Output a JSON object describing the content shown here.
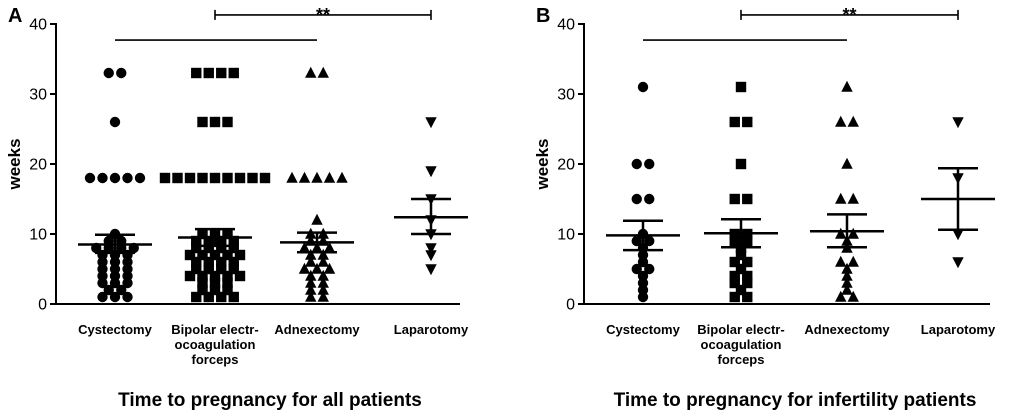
{
  "chart_data": [
    {
      "type": "scatter",
      "panel": "A",
      "title": "Time to pregnancy for all patients",
      "ylabel": "weeks",
      "ylim": [
        0,
        40
      ],
      "yticks": [
        0,
        10,
        20,
        30,
        40
      ],
      "categories": [
        "Cystectomy",
        "Bipolar electr-ocoagulation forceps",
        "Adnexectomy",
        "Laparotomy"
      ],
      "category_lines": [
        [
          "Cystectomy"
        ],
        [
          "Bipolar electr-",
          "ocoagulation",
          "forceps"
        ],
        [
          "Adnexectomy"
        ],
        [
          "Laparotomy"
        ]
      ],
      "markers": [
        "circle",
        "square",
        "triangle-up",
        "triangle-down"
      ],
      "series": [
        {
          "name": "Cystectomy",
          "values": [
            33,
            33,
            26,
            18,
            18,
            18,
            18,
            18,
            10,
            9,
            9,
            8,
            8,
            8,
            8,
            7,
            7,
            7,
            6,
            6,
            6,
            5,
            5,
            5,
            4,
            4,
            4,
            3,
            3,
            3,
            2,
            2,
            1,
            1,
            1
          ]
        },
        {
          "name": "Bipolar electr-ocoagulation forceps",
          "values": [
            33,
            33,
            33,
            33,
            26,
            26,
            26,
            18,
            18,
            18,
            18,
            18,
            18,
            18,
            18,
            18,
            10,
            10,
            10,
            9,
            9,
            9,
            9,
            8,
            8,
            8,
            8,
            7,
            7,
            7,
            7,
            7,
            6,
            6,
            6,
            6,
            5,
            5,
            5,
            5,
            4,
            4,
            4,
            4,
            4,
            3,
            3,
            3,
            2,
            2,
            2,
            1,
            1,
            1,
            1
          ]
        },
        {
          "name": "Adnexectomy",
          "values": [
            33,
            33,
            18,
            18,
            18,
            18,
            18,
            12,
            10,
            10,
            9,
            9,
            8,
            8,
            8,
            7,
            7,
            6,
            6,
            5,
            5,
            5,
            4,
            4,
            3,
            3,
            2,
            2,
            1,
            1
          ]
        },
        {
          "name": "Laparotomy",
          "values": [
            26,
            19,
            15,
            12,
            10,
            8,
            7,
            5
          ]
        }
      ],
      "stats": [
        {
          "mean": 8.5,
          "sem_low": 7.3,
          "sem_high": 9.9
        },
        {
          "mean": 9.5,
          "sem_low": 8.3,
          "sem_high": 10.7
        },
        {
          "mean": 8.8,
          "sem_low": 7.4,
          "sem_high": 10.2
        },
        {
          "mean": 12.4,
          "sem_low": 10.0,
          "sem_high": 15.0
        }
      ],
      "significance": [
        {
          "label": "",
          "from": 0,
          "to": 2,
          "y": 37.7
        },
        {
          "label": "**",
          "from": 1,
          "to": 3,
          "y": 41.3
        }
      ]
    },
    {
      "type": "scatter",
      "panel": "B",
      "title": "Time to pregnancy for infertility patients",
      "ylabel": "weeks",
      "ylim": [
        0,
        40
      ],
      "yticks": [
        0,
        10,
        20,
        30,
        40
      ],
      "categories": [
        "Cystectomy",
        "Bipolar electr-ocoagulation forceps",
        "Adnexectomy",
        "Laparotomy"
      ],
      "category_lines": [
        [
          "Cystectomy"
        ],
        [
          "Bipolar electr-",
          "ocoagulation",
          "forceps"
        ],
        [
          "Adnexectomy"
        ],
        [
          "Laparotomy"
        ]
      ],
      "markers": [
        "circle",
        "square",
        "triangle-up",
        "triangle-down"
      ],
      "series": [
        {
          "name": "Cystectomy",
          "values": [
            31,
            20,
            20,
            15,
            15,
            10,
            9,
            9,
            8,
            7,
            6,
            5,
            5,
            4,
            3,
            2,
            1
          ]
        },
        {
          "name": "Bipolar electr-ocoagulation forceps",
          "values": [
            31,
            26,
            26,
            20,
            15,
            15,
            10,
            10,
            9,
            9,
            8,
            7,
            6,
            6,
            5,
            4,
            4,
            3,
            3,
            2,
            1,
            1
          ]
        },
        {
          "name": "Adnexectomy",
          "values": [
            31,
            26,
            26,
            20,
            15,
            15,
            10,
            10,
            9,
            8,
            6,
            6,
            5,
            4,
            3,
            2,
            1,
            1
          ]
        },
        {
          "name": "Laparotomy",
          "values": [
            26,
            18,
            10,
            6
          ]
        }
      ],
      "stats": [
        {
          "mean": 9.8,
          "sem_low": 7.7,
          "sem_high": 11.9
        },
        {
          "mean": 10.1,
          "sem_low": 8.1,
          "sem_high": 12.1
        },
        {
          "mean": 10.4,
          "sem_low": 8.1,
          "sem_high": 12.8
        },
        {
          "mean": 15.0,
          "sem_low": 10.6,
          "sem_high": 19.4
        }
      ],
      "significance": [
        {
          "label": "",
          "from": 0,
          "to": 2,
          "y": 37.7
        },
        {
          "label": "**",
          "from": 1,
          "to": 3,
          "y": 41.3
        }
      ]
    }
  ]
}
